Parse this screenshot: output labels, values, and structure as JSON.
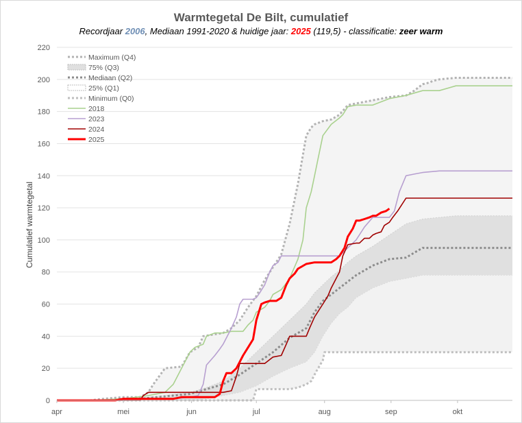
{
  "chart_data": {
    "type": "line",
    "title": "Warmtegetal De Bilt, cumulatief",
    "subtitle": {
      "prefix": "Recordjaar ",
      "record_year": "2006",
      "mid": ", Mediaan 1991-2020 & huidige jaar: ",
      "current_year": "2025",
      "current_value": " (119,5)",
      "class_prefix": " - classificatie: ",
      "classification": "zeer warm"
    },
    "ylabel": "Cumulatief warmtegetal",
    "ylim": [
      0,
      220
    ],
    "yticks": [
      0,
      20,
      40,
      60,
      80,
      100,
      120,
      140,
      160,
      180,
      200,
      220
    ],
    "x_unit": "day of year (1 apr = 0)",
    "xlim": [
      0,
      274
    ],
    "xticks": [
      {
        "label": "apr",
        "x": 0
      },
      {
        "label": "mei",
        "x": 40
      },
      {
        "label": "jun",
        "x": 81
      },
      {
        "label": "jul",
        "x": 120
      },
      {
        "label": "aug",
        "x": 161
      },
      {
        "label": "sep",
        "x": 201
      },
      {
        "label": "okt",
        "x": 241
      }
    ],
    "legend": {
      "placement": "top-left",
      "entries": [
        {
          "key": "max",
          "label": "Maximum (Q4)"
        },
        {
          "key": "q3",
          "label": "75% (Q3)"
        },
        {
          "key": "median",
          "label": "Mediaan (Q2)"
        },
        {
          "key": "q1",
          "label": "25% (Q1)"
        },
        {
          "key": "min",
          "label": "Minimum (Q0)"
        },
        {
          "key": "2018",
          "label": "2018"
        },
        {
          "key": "2023",
          "label": "2023"
        },
        {
          "key": "2024",
          "label": "2024"
        },
        {
          "key": "2025",
          "label": "2025"
        }
      ]
    },
    "colors": {
      "max": "#b3b3b3",
      "q3_fill": "#e0e0e0",
      "q1_fill": "#f2f2f2",
      "median": "#8c8c8c",
      "min": "#bfbfbf",
      "2018": "#a9d18e",
      "2023": "#b79fd0",
      "2024": "#a00000",
      "2025": "#ff0000"
    },
    "series": [
      {
        "key": "max",
        "x": [
          0,
          20,
          28,
          40,
          50,
          55,
          58,
          65,
          75,
          80,
          85,
          88,
          100,
          105,
          110,
          115,
          120,
          125,
          130,
          135,
          140,
          145,
          150,
          153,
          155,
          160,
          165,
          170,
          175,
          180,
          190,
          200,
          210,
          215,
          220,
          224,
          226,
          230,
          240,
          250,
          274
        ],
        "y": [
          0,
          0,
          1,
          2,
          2,
          5,
          10,
          20,
          21,
          30,
          33,
          40,
          42,
          45,
          50,
          58,
          65,
          75,
          83,
          91,
          110,
          135,
          165,
          170,
          172,
          174,
          175,
          178,
          184,
          185,
          187,
          189,
          190,
          193,
          197,
          198,
          199,
          200,
          201,
          201,
          201
        ]
      },
      {
        "key": "q3",
        "x": [
          0,
          20,
          30,
          45,
          55,
          65,
          80,
          90,
          100,
          110,
          120,
          130,
          140,
          150,
          155,
          160,
          165,
          170,
          175,
          180,
          190,
          200,
          210,
          220,
          240,
          274
        ],
        "y": [
          0,
          0,
          0,
          1,
          2,
          3,
          5,
          8,
          12,
          20,
          30,
          40,
          50,
          60,
          67,
          72,
          77,
          81,
          86,
          90,
          96,
          103,
          110,
          113,
          115,
          115
        ]
      },
      {
        "key": "median",
        "x": [
          0,
          30,
          40,
          50,
          60,
          70,
          80,
          90,
          100,
          110,
          120,
          130,
          140,
          150,
          155,
          160,
          165,
          170,
          175,
          180,
          190,
          200,
          210,
          215,
          220,
          274
        ],
        "y": [
          0,
          0,
          1,
          1,
          2,
          3,
          4,
          7,
          10,
          16,
          23,
          30,
          39,
          45,
          55,
          62,
          66,
          70,
          74,
          78,
          84,
          88,
          89,
          92,
          95,
          95
        ]
      },
      {
        "key": "q1",
        "x": [
          0,
          40,
          60,
          80,
          90,
          100,
          110,
          120,
          130,
          140,
          150,
          155,
          160,
          165,
          170,
          175,
          180,
          190,
          200,
          210,
          220,
          274
        ],
        "y": [
          0,
          0,
          0,
          0,
          1,
          3,
          5,
          9,
          15,
          20,
          24,
          30,
          40,
          48,
          54,
          58,
          64,
          70,
          74,
          76,
          78,
          78
        ]
      },
      {
        "key": "min",
        "x": [
          0,
          118,
          120,
          130,
          140,
          145,
          150,
          153,
          156,
          160,
          161,
          170,
          200,
          240,
          274
        ],
        "y": [
          0,
          0,
          7,
          7,
          7,
          8,
          10,
          12,
          18,
          25,
          30,
          30,
          30,
          30,
          30
        ]
      },
      {
        "key": "2018",
        "x": [
          0,
          20,
          40,
          55,
          65,
          70,
          75,
          80,
          83,
          88,
          90,
          95,
          100,
          105,
          112,
          115,
          118,
          120,
          125,
          128,
          130,
          135,
          138,
          140,
          145,
          148,
          150,
          153,
          155,
          157,
          160,
          165,
          170,
          172,
          175,
          180,
          190,
          200,
          210,
          220,
          225,
          230,
          240,
          274
        ],
        "y": [
          0,
          0,
          1,
          3,
          5,
          10,
          20,
          30,
          33,
          35,
          40,
          42,
          42,
          43,
          43,
          47,
          50,
          55,
          58,
          62,
          66,
          69,
          73,
          76,
          88,
          100,
          120,
          130,
          140,
          150,
          165,
          172,
          176,
          178,
          183,
          184,
          184,
          188,
          190,
          193,
          193,
          193,
          196,
          196
        ]
      },
      {
        "key": "2023",
        "x": [
          0,
          40,
          55,
          60,
          70,
          80,
          85,
          88,
          90,
          95,
          98,
          100,
          105,
          108,
          110,
          112,
          115,
          118,
          120,
          122,
          125,
          128,
          130,
          133,
          135,
          140,
          150,
          160,
          165,
          170,
          175,
          180,
          185,
          190,
          195,
          200,
          203,
          206,
          210,
          215,
          220,
          230,
          274
        ],
        "y": [
          0,
          0,
          1,
          1,
          1,
          2,
          3,
          10,
          22,
          28,
          32,
          35,
          45,
          52,
          60,
          63,
          63,
          63,
          64,
          67,
          72,
          80,
          84,
          86,
          90,
          90,
          90,
          90,
          90,
          90,
          95,
          100,
          108,
          114,
          114,
          114,
          118,
          130,
          140,
          141,
          142,
          143,
          143
        ]
      },
      {
        "key": "2024",
        "x": [
          0,
          35,
          50,
          52,
          55,
          65,
          70,
          75,
          80,
          85,
          90,
          95,
          100,
          105,
          108,
          110,
          115,
          120,
          125,
          130,
          135,
          138,
          140,
          145,
          150,
          152,
          155,
          160,
          163,
          165,
          170,
          172,
          175,
          180,
          182,
          185,
          188,
          190,
          192,
          195,
          197,
          200,
          202,
          205,
          210,
          274
        ],
        "y": [
          0,
          0,
          0,
          3,
          5,
          5,
          5,
          5,
          5,
          5,
          5,
          5,
          5,
          6,
          15,
          23,
          23,
          23,
          23,
          27,
          28,
          35,
          40,
          40,
          40,
          45,
          52,
          60,
          65,
          70,
          80,
          90,
          97,
          98,
          98,
          101,
          101,
          103,
          104,
          105,
          109,
          111,
          114,
          118,
          126,
          126
        ]
      },
      {
        "key": "2025",
        "x": [
          0,
          35,
          40,
          50,
          60,
          70,
          75,
          80,
          85,
          90,
          92,
          95,
          98,
          100,
          102,
          105,
          108,
          110,
          112,
          115,
          118,
          120,
          123,
          125,
          128,
          132,
          135,
          138,
          140,
          143,
          145,
          150,
          155,
          158,
          160,
          165,
          168,
          170,
          173,
          175,
          178,
          180,
          182,
          185,
          188,
          190,
          192,
          195,
          198,
          200
        ],
        "y": [
          0,
          0,
          1,
          1,
          1,
          1,
          2,
          2,
          2,
          2,
          2,
          2,
          4,
          12,
          17,
          17,
          20,
          24,
          28,
          33,
          38,
          50,
          60,
          61,
          62,
          62,
          64,
          72,
          76,
          79,
          82,
          85,
          86,
          86,
          86,
          86,
          88,
          90,
          95,
          102,
          107,
          112,
          112,
          113,
          114,
          115,
          115,
          117,
          118,
          119.5
        ]
      }
    ]
  }
}
